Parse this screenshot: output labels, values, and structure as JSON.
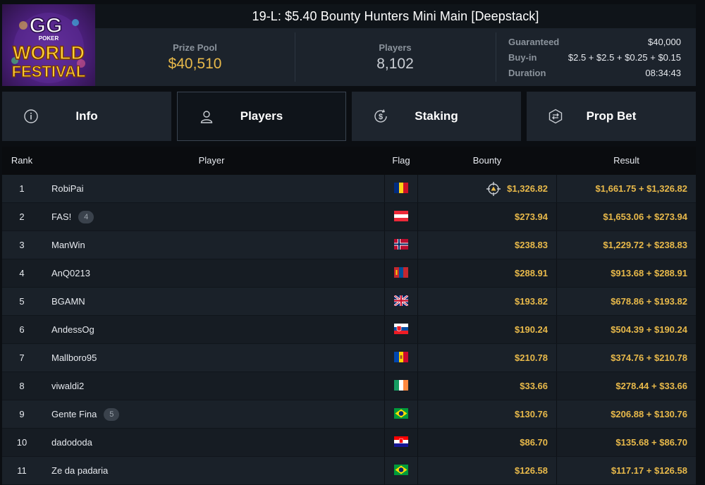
{
  "header": {
    "logo_text": [
      "GG",
      "POKER",
      "WORLD",
      "FESTIVAL"
    ],
    "title": "19-L: $5.40 Bounty Hunters Mini Main [Deepstack]",
    "prize_pool_label": "Prize Pool",
    "prize_pool_value": "$40,510",
    "players_label": "Players",
    "players_value": "8,102",
    "details": [
      {
        "label": "Guaranteed",
        "value": "$40,000"
      },
      {
        "label": "Buy-in",
        "value": "$2.5 + $2.5 + $0.25 + $0.15"
      },
      {
        "label": "Duration",
        "value": "08:34:43"
      }
    ]
  },
  "tabs": [
    {
      "label": "Info",
      "icon": "info-icon",
      "active": false
    },
    {
      "label": "Players",
      "icon": "user-icon",
      "active": true
    },
    {
      "label": "Staking",
      "icon": "staking-coin-icon",
      "active": false
    },
    {
      "label": "Prop Bet",
      "icon": "prop-bet-icon",
      "active": false
    }
  ],
  "table": {
    "columns": [
      "Rank",
      "Player",
      "Flag",
      "Bounty",
      "Result"
    ],
    "rows": [
      {
        "rank": "1",
        "player": "RobiPai",
        "badge": "",
        "flag": "romania-flag",
        "bounty": "$1,326.82",
        "result": "$1,661.75 + $1,326.82",
        "target": true
      },
      {
        "rank": "2",
        "player": "FAS!",
        "badge": "4",
        "flag": "austria-flag",
        "bounty": "$273.94",
        "result": "$1,653.06 + $273.94"
      },
      {
        "rank": "3",
        "player": "ManWin",
        "badge": "",
        "flag": "norway-flag",
        "bounty": "$238.83",
        "result": "$1,229.72 + $238.83"
      },
      {
        "rank": "4",
        "player": "AnQ0213",
        "badge": "",
        "flag": "mongolia-flag",
        "bounty": "$288.91",
        "result": "$913.68 + $288.91"
      },
      {
        "rank": "5",
        "player": "BGAMN",
        "badge": "",
        "flag": "uk-flag",
        "bounty": "$193.82",
        "result": "$678.86 + $193.82"
      },
      {
        "rank": "6",
        "player": "AndessOg",
        "badge": "",
        "flag": "slovakia-flag",
        "bounty": "$190.24",
        "result": "$504.39 + $190.24"
      },
      {
        "rank": "7",
        "player": "Mallboro95",
        "badge": "",
        "flag": "moldova-flag",
        "bounty": "$210.78",
        "result": "$374.76 + $210.78"
      },
      {
        "rank": "8",
        "player": "viwaldi2",
        "badge": "",
        "flag": "ireland-flag",
        "bounty": "$33.66",
        "result": "$278.44 + $33.66"
      },
      {
        "rank": "9",
        "player": "Gente Fina",
        "badge": "5",
        "flag": "brazil-flag",
        "bounty": "$130.76",
        "result": "$206.88 + $130.76"
      },
      {
        "rank": "10",
        "player": "dadododa",
        "badge": "",
        "flag": "croatia-flag",
        "bounty": "$86.70",
        "result": "$135.68 + $86.70"
      },
      {
        "rank": "11",
        "player": "Ze da padaria",
        "badge": "",
        "flag": "brazil-flag",
        "bounty": "$126.58",
        "result": "$117.17 + $126.58"
      }
    ]
  },
  "colors": {
    "accent_gold": "#e8b94a",
    "panel": "#1c232c",
    "background": "#0b0e12"
  }
}
